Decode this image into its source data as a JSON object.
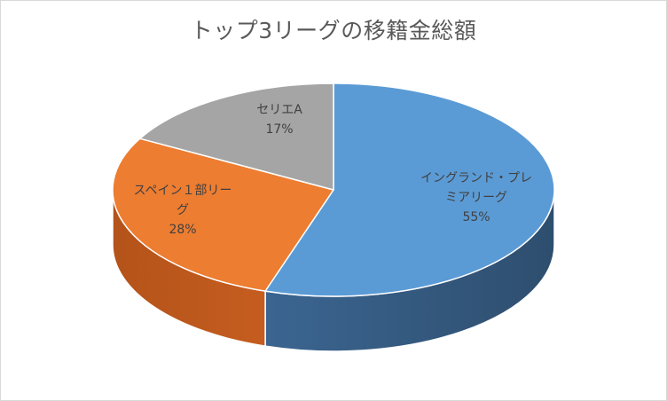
{
  "chart_data": {
    "type": "pie",
    "title": "トップ3リーグの移籍金総額",
    "style": "3d",
    "legend": "none",
    "slices": [
      {
        "label_lines": [
          "イングランド・プレ",
          "ミアリーグ"
        ],
        "value": 55,
        "value_label": "55%",
        "color": "#5b9bd5",
        "side_color": "#2e4e6e"
      },
      {
        "label_lines": [
          "スペイン１部リー",
          "グ"
        ],
        "value": 28,
        "value_label": "28%",
        "color": "#ed7d31",
        "side_color": "#b4531a"
      },
      {
        "label_lines": [
          "セリエA"
        ],
        "value": 17,
        "value_label": "17%",
        "color": "#a5a5a5",
        "side_color": "#7a7a7a"
      }
    ]
  }
}
